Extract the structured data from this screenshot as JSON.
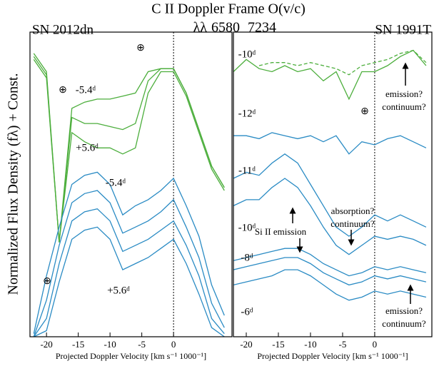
{
  "figure": {
    "title": "C II Doppler Frame O(v/c)",
    "lines_label": "λλ",
    "wavelengths": [
      6580,
      7234
    ],
    "wavelength_colors": [
      "#2a8bc4",
      "#4cae3c"
    ],
    "ylabel": "Normalized Flux Density (fλ) + Const."
  },
  "chart_data": [
    {
      "type": "line",
      "title": "SN 2012dn",
      "xlabel": "Projected Doppler Velocity [km s⁻¹ 1000⁻¹]",
      "xlim": [
        -22.6,
        9.2
      ],
      "xticks": [
        -20,
        -15,
        -10,
        -5,
        0
      ],
      "ylim": [
        0,
        100
      ],
      "vline": 0,
      "x": [
        -22,
        -20,
        -18,
        -16,
        -14,
        -12,
        -10,
        -8,
        -6,
        -4,
        -2,
        0,
        2,
        4,
        6,
        8
      ],
      "series": [
        {
          "color": "#4cae3c",
          "values": [
            93,
            87,
            31,
            75,
            77,
            78,
            78,
            79,
            80,
            87,
            88,
            88,
            80,
            68,
            56,
            49
          ]
        },
        {
          "color": "#4cae3c",
          "values": [
            92,
            86,
            31,
            72,
            70,
            70,
            69,
            68,
            70,
            84,
            88,
            88,
            80,
            68,
            56,
            49
          ]
        },
        {
          "color": "#4cae3c",
          "values": [
            91,
            85,
            31,
            67,
            64,
            62,
            62,
            60,
            62,
            80,
            87,
            87,
            79,
            67,
            55,
            48
          ]
        },
        {
          "color": "#2a8bc4",
          "values": [
            1,
            20,
            36,
            50,
            53,
            54,
            50,
            40,
            43,
            45,
            48,
            52,
            43,
            33,
            17,
            7
          ]
        },
        {
          "color": "#2a8bc4",
          "values": [
            0,
            12,
            30,
            44,
            47,
            48,
            44,
            34,
            36,
            38,
            41,
            45,
            36,
            26,
            11,
            3
          ]
        },
        {
          "color": "#2a8bc4",
          "values": [
            0,
            6,
            24,
            38,
            41,
            42,
            38,
            28,
            30,
            32,
            35,
            38,
            30,
            20,
            6,
            1
          ]
        },
        {
          "color": "#2a8bc4",
          "values": [
            0,
            2,
            18,
            32,
            35,
            36,
            32,
            22,
            24,
            26,
            29,
            32,
            24,
            14,
            3,
            0
          ]
        }
      ],
      "annotations": [
        [
          "⊕"
        ],
        [
          "⊕"
        ],
        [
          "⊕"
        ],
        [
          "-5.4ᵈ"
        ],
        [
          "+5.6ᵈ"
        ],
        [
          "-5.4ᵈ"
        ],
        [
          "+5.6ᵈ"
        ]
      ]
    },
    {
      "type": "line",
      "title": "SN 1991T",
      "xlabel": "Projected Doppler Velocity [km s⁻¹ 1000⁻¹]",
      "xlim": [
        -22,
        8.9
      ],
      "xticks": [
        -20,
        -15,
        -10,
        -5,
        0
      ],
      "ylim": [
        0,
        100
      ],
      "vline": 0,
      "x": [
        -22,
        -20,
        -18,
        -16,
        -14,
        -12,
        -10,
        -8,
        -6,
        -4,
        -2,
        0,
        2,
        4,
        6,
        8
      ],
      "series": [
        {
          "color": "#4cae3c",
          "values": [
            87,
            91,
            88,
            87,
            89,
            87,
            88,
            84,
            87,
            78,
            87,
            87,
            89,
            92,
            94,
            89
          ]
        },
        {
          "color": "#4cae3c",
          "dashed": true,
          "values": [
            null,
            null,
            89,
            90,
            90,
            89,
            90,
            89,
            88,
            86,
            89,
            90,
            91,
            93,
            94,
            90
          ]
        },
        {
          "color": "#2a8bc4",
          "values": [
            66,
            66,
            65,
            67,
            66,
            65,
            66,
            64,
            66,
            60,
            64,
            63,
            65,
            66,
            64,
            62
          ]
        },
        {
          "color": "#2a8bc4",
          "values": [
            52,
            54,
            53,
            57,
            60,
            57,
            50,
            43,
            36,
            33,
            36,
            40,
            38,
            40,
            38,
            36
          ]
        },
        {
          "color": "#2a8bc4",
          "values": [
            43,
            45,
            45,
            49,
            52,
            49,
            43,
            36,
            30,
            27,
            30,
            33,
            32,
            33,
            32,
            30
          ]
        },
        {
          "color": "#2a8bc4",
          "values": [
            25,
            26,
            27,
            28,
            29,
            29,
            27,
            24,
            22,
            20,
            21,
            23,
            22,
            23,
            22,
            21
          ]
        },
        {
          "color": "#2a8bc4",
          "values": [
            22,
            23,
            24,
            25,
            26,
            26,
            24,
            21,
            19,
            17,
            18,
            20,
            19,
            20,
            19,
            18
          ]
        },
        {
          "color": "#2a8bc4",
          "values": [
            17,
            18,
            19,
            20,
            22,
            22,
            20,
            17,
            14,
            12,
            13,
            15,
            14,
            15,
            14,
            13
          ]
        }
      ],
      "annotations": [
        [
          "-10ᵈ"
        ],
        [
          "⊕"
        ],
        [
          "-12ᵈ"
        ],
        [
          "-11ᵈ"
        ],
        [
          "-10ᵈ"
        ],
        [
          "-8ᵈ"
        ],
        [
          "-6ᵈ"
        ],
        [
          "emission?",
          "continuum?"
        ],
        [
          "absorption?",
          "continuum?"
        ],
        [
          "Si II emission"
        ],
        [
          "emission?",
          "continuum?"
        ]
      ]
    }
  ]
}
